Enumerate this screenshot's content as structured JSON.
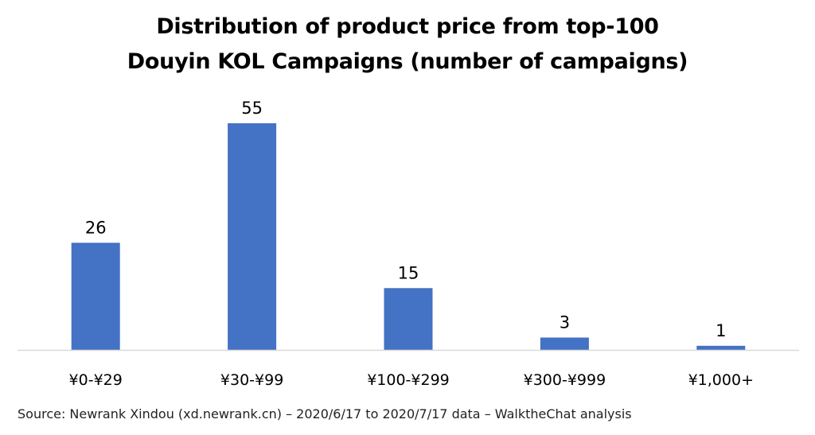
{
  "chart_data": {
    "type": "bar",
    "title_lines": [
      "Distribution of product price from top-100",
      "Douyin KOL Campaigns (number of campaigns)"
    ],
    "categories": [
      "¥0-¥29",
      "¥30-¥99",
      "¥100-¥299",
      "¥300-¥999",
      "¥1,000+"
    ],
    "values": [
      26,
      55,
      15,
      3,
      1
    ],
    "xlabel": "",
    "ylabel": "",
    "ylim": [
      0,
      55
    ],
    "grid": false,
    "legend": "none",
    "bar_color": "#4472C4",
    "axis_color": "#D9D9D9"
  },
  "source_note": "Source: Newrank Xindou (xd.newrank.cn) – 2020/6/17 to 2020/7/17 data – WalktheChat analysis"
}
